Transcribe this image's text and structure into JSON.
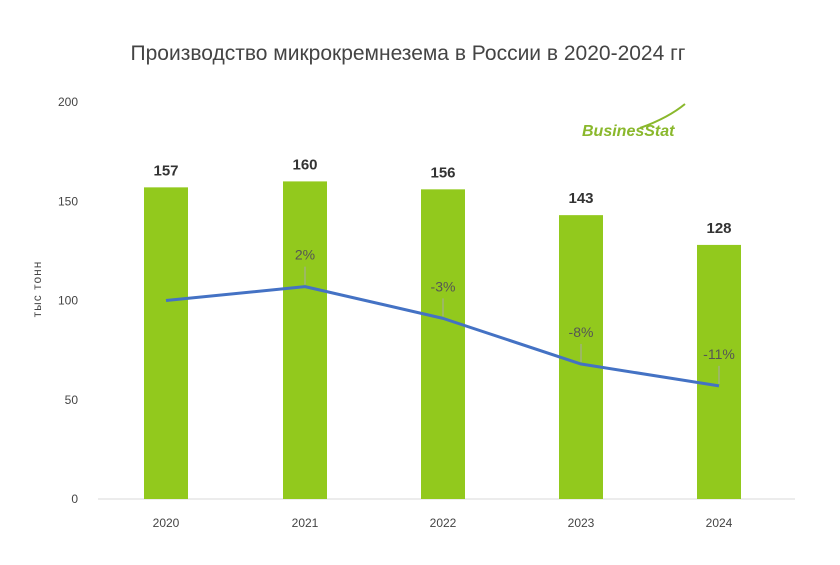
{
  "chart_data": {
    "type": "bar",
    "title": "Производство микрокремнезема в России в 2020-2024 гг",
    "ylabel": "тыс тонн",
    "xlabel": "",
    "categories": [
      "2020",
      "2021",
      "2022",
      "2023",
      "2024"
    ],
    "values": [
      157,
      160,
      156,
      143,
      128
    ],
    "value_labels": [
      "157",
      "160",
      "156",
      "143",
      "128"
    ],
    "ylim": [
      0,
      200
    ],
    "yticks": [
      "0",
      "50",
      "100",
      "150",
      "200"
    ],
    "grid": false,
    "bar_color": "#92c91d",
    "line_series": {
      "values": [
        100,
        107,
        91,
        68,
        57
      ],
      "labels": [
        "",
        "2%",
        "-3%",
        "-8%",
        "-11%"
      ],
      "color": "#4472c4"
    },
    "watermark": "BusinesStat"
  }
}
